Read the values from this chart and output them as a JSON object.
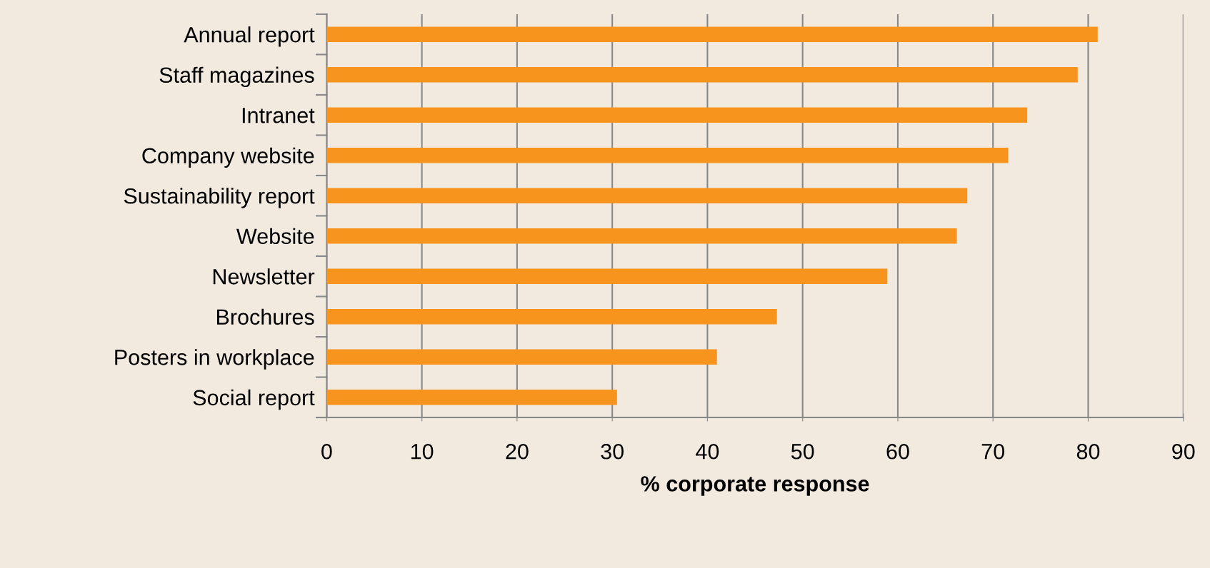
{
  "chart_data": {
    "type": "bar",
    "orientation": "horizontal",
    "xlabel": "% corporate response",
    "categories": [
      "Annual report",
      "Staff magazines",
      "Intranet",
      "Company website",
      "Sustainability report",
      "Website",
      "Newsletter",
      "Brochures",
      "Posters in workplace",
      "Social report"
    ],
    "values": [
      81.0,
      78.9,
      73.6,
      71.6,
      67.3,
      66.2,
      58.9,
      47.3,
      41.0,
      30.5
    ],
    "color": "#f7941e",
    "xlim": [
      0,
      90
    ],
    "xticks": [
      0,
      10,
      20,
      30,
      40,
      50,
      60,
      70,
      80,
      90
    ],
    "grid": "x"
  }
}
